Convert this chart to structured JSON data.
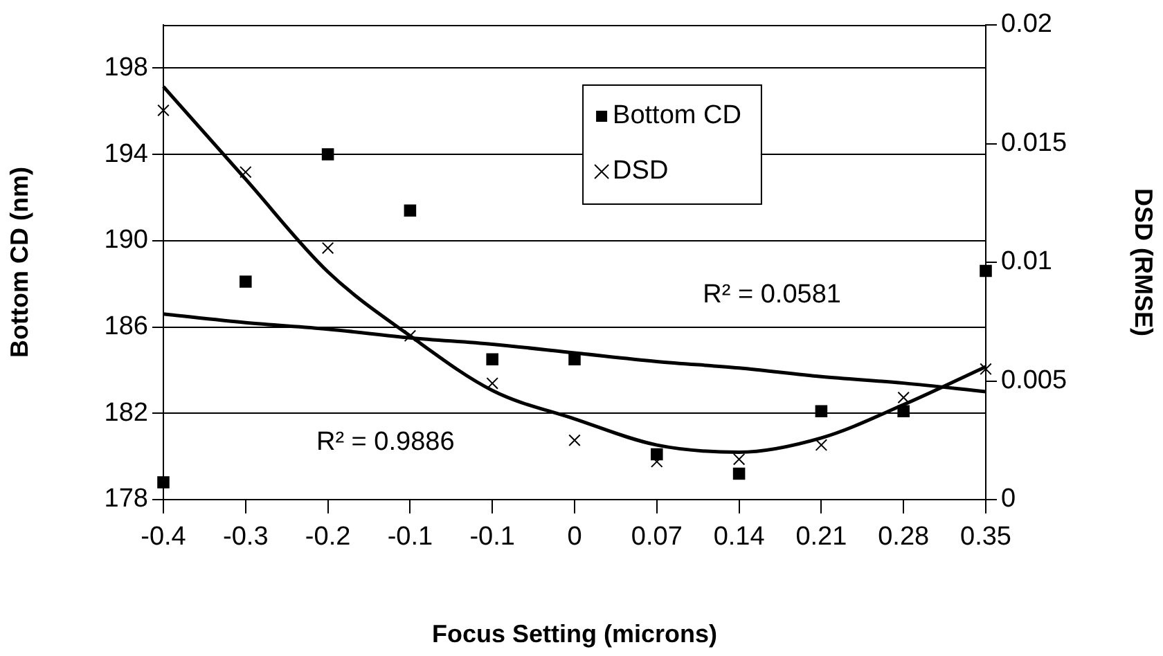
{
  "chart_data": {
    "type": "scatter",
    "xlabel": "Focus Setting (microns)",
    "ylabel": "Bottom CD (nm)",
    "y2label": "DSD (RMSE)",
    "categories": [
      "-0.4",
      "-0.3",
      "-0.2",
      "-0.1",
      "-0.1",
      "0",
      "0.07",
      "0.14",
      "0.21",
      "0.28",
      "0.35"
    ],
    "series": [
      {
        "name": "Bottom CD",
        "marker": "square",
        "color": "#000000",
        "axis": "y",
        "values": [
          178.8,
          188.1,
          194.0,
          191.4,
          184.5,
          184.5,
          180.1,
          179.2,
          182.1,
          182.1,
          188.6
        ]
      },
      {
        "name": "DSD",
        "marker": "cross",
        "color": "#000000",
        "axis": "y2",
        "values": [
          0.0164,
          0.0138,
          0.0106,
          0.0069,
          0.0049,
          0.0025,
          0.0016,
          0.0017,
          0.0023,
          0.0043,
          0.0055
        ]
      },
      {
        "type": "line",
        "marker": "none",
        "color": "#000000",
        "axis": "y",
        "values": [
          186.6,
          186.2,
          185.9,
          185.5,
          185.2,
          184.8,
          184.4,
          184.1,
          183.7,
          183.4,
          183.0
        ]
      },
      {
        "type": "line",
        "marker": "none",
        "color": "#000000",
        "axis": "y2",
        "values": [
          0.0174,
          0.0135,
          0.0096,
          0.0069,
          0.0046,
          0.0034,
          0.0023,
          0.002,
          0.0026,
          0.004,
          0.0056
        ]
      }
    ],
    "ylim": [
      178,
      200
    ],
    "yticks": [
      178,
      182,
      186,
      190,
      194,
      198
    ],
    "y2lim": [
      0,
      0.02
    ],
    "y2ticks": [
      0,
      0.005,
      0.01,
      0.015,
      0.02
    ],
    "grid": "y",
    "legend": "top",
    "annotations": [
      "R² = 0.0581",
      "R² = 0.9886"
    ]
  }
}
